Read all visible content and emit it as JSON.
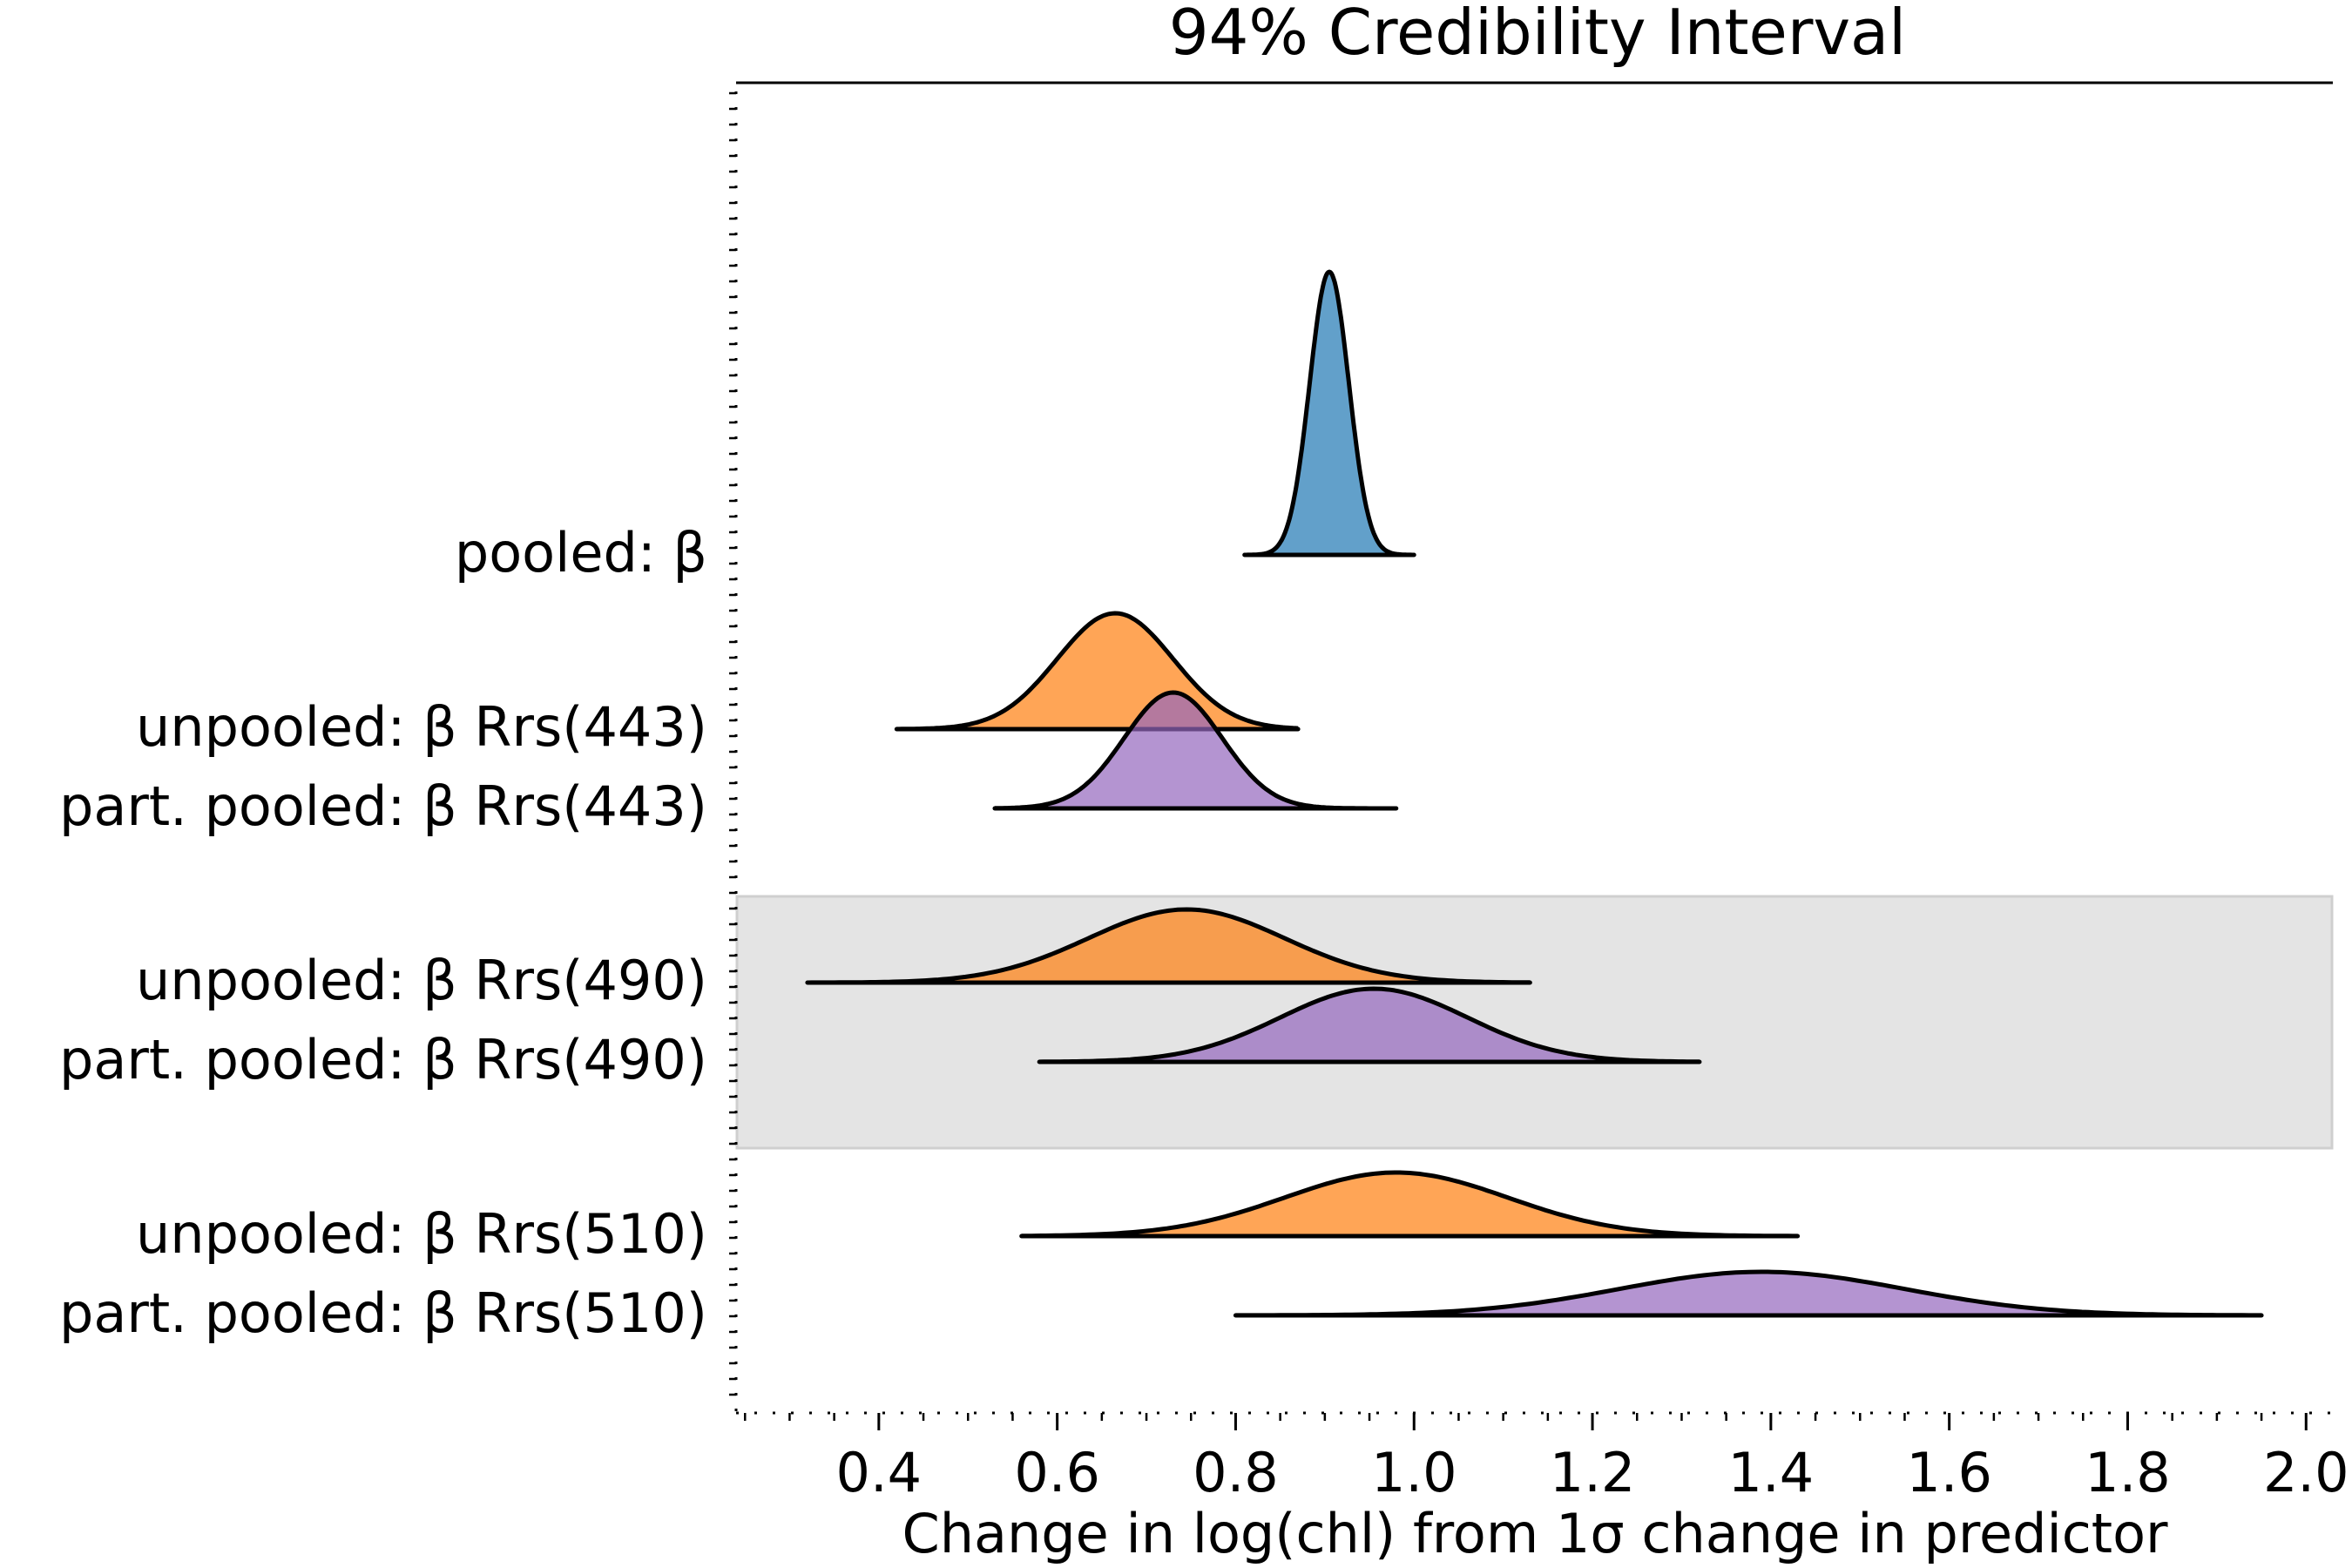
{
  "chart_data": {
    "type": "ridgeline",
    "title": "94% Credibility Interval",
    "xlabel": "Change in log(chl) from 1σ change in predictor",
    "ylabel": "",
    "xlim": [
      0.24,
      2.03
    ],
    "xticks": [
      0.4,
      0.6,
      0.8,
      1.0,
      1.2,
      1.4,
      1.6,
      1.8,
      2.0
    ],
    "xtick_labels": [
      "0.4",
      "0.6",
      "0.8",
      "1.0",
      "1.2",
      "1.4",
      "1.6",
      "1.8",
      "2.0"
    ],
    "grid": false,
    "legend": "none",
    "highlight_band": {
      "rows": [
        "unpooled: β Rrs(490)",
        "part. pooled: β Rrs(490)"
      ],
      "color": "#e4e4e4"
    },
    "series": [
      {
        "label": "pooled: β",
        "color": "#1f77b4",
        "min": 0.81,
        "max": 1.0,
        "mean": 0.905,
        "sd": 0.022
      },
      {
        "label": "unpooled: β Rrs(443)",
        "color": "#ff7f0e",
        "min": 0.42,
        "max": 0.87,
        "mean": 0.665,
        "sd": 0.065
      },
      {
        "label": "part. pooled: β Rrs(443)",
        "color": "#9467bd",
        "min": 0.53,
        "max": 0.98,
        "mean": 0.73,
        "sd": 0.055
      },
      {
        "label": "unpooled: β Rrs(490)",
        "color": "#ff7f0e",
        "min": 0.32,
        "max": 1.13,
        "mean": 0.745,
        "sd": 0.11
      },
      {
        "label": "part. pooled: β Rrs(490)",
        "color": "#9467bd",
        "min": 0.58,
        "max": 1.32,
        "mean": 0.955,
        "sd": 0.105
      },
      {
        "label": "unpooled: β Rrs(510)",
        "color": "#ff7f0e",
        "min": 0.56,
        "max": 1.43,
        "mean": 0.98,
        "sd": 0.125
      },
      {
        "label": "part. pooled: β Rrs(510)",
        "color": "#9467bd",
        "min": 0.8,
        "max": 1.95,
        "mean": 1.39,
        "sd": 0.16
      }
    ]
  }
}
